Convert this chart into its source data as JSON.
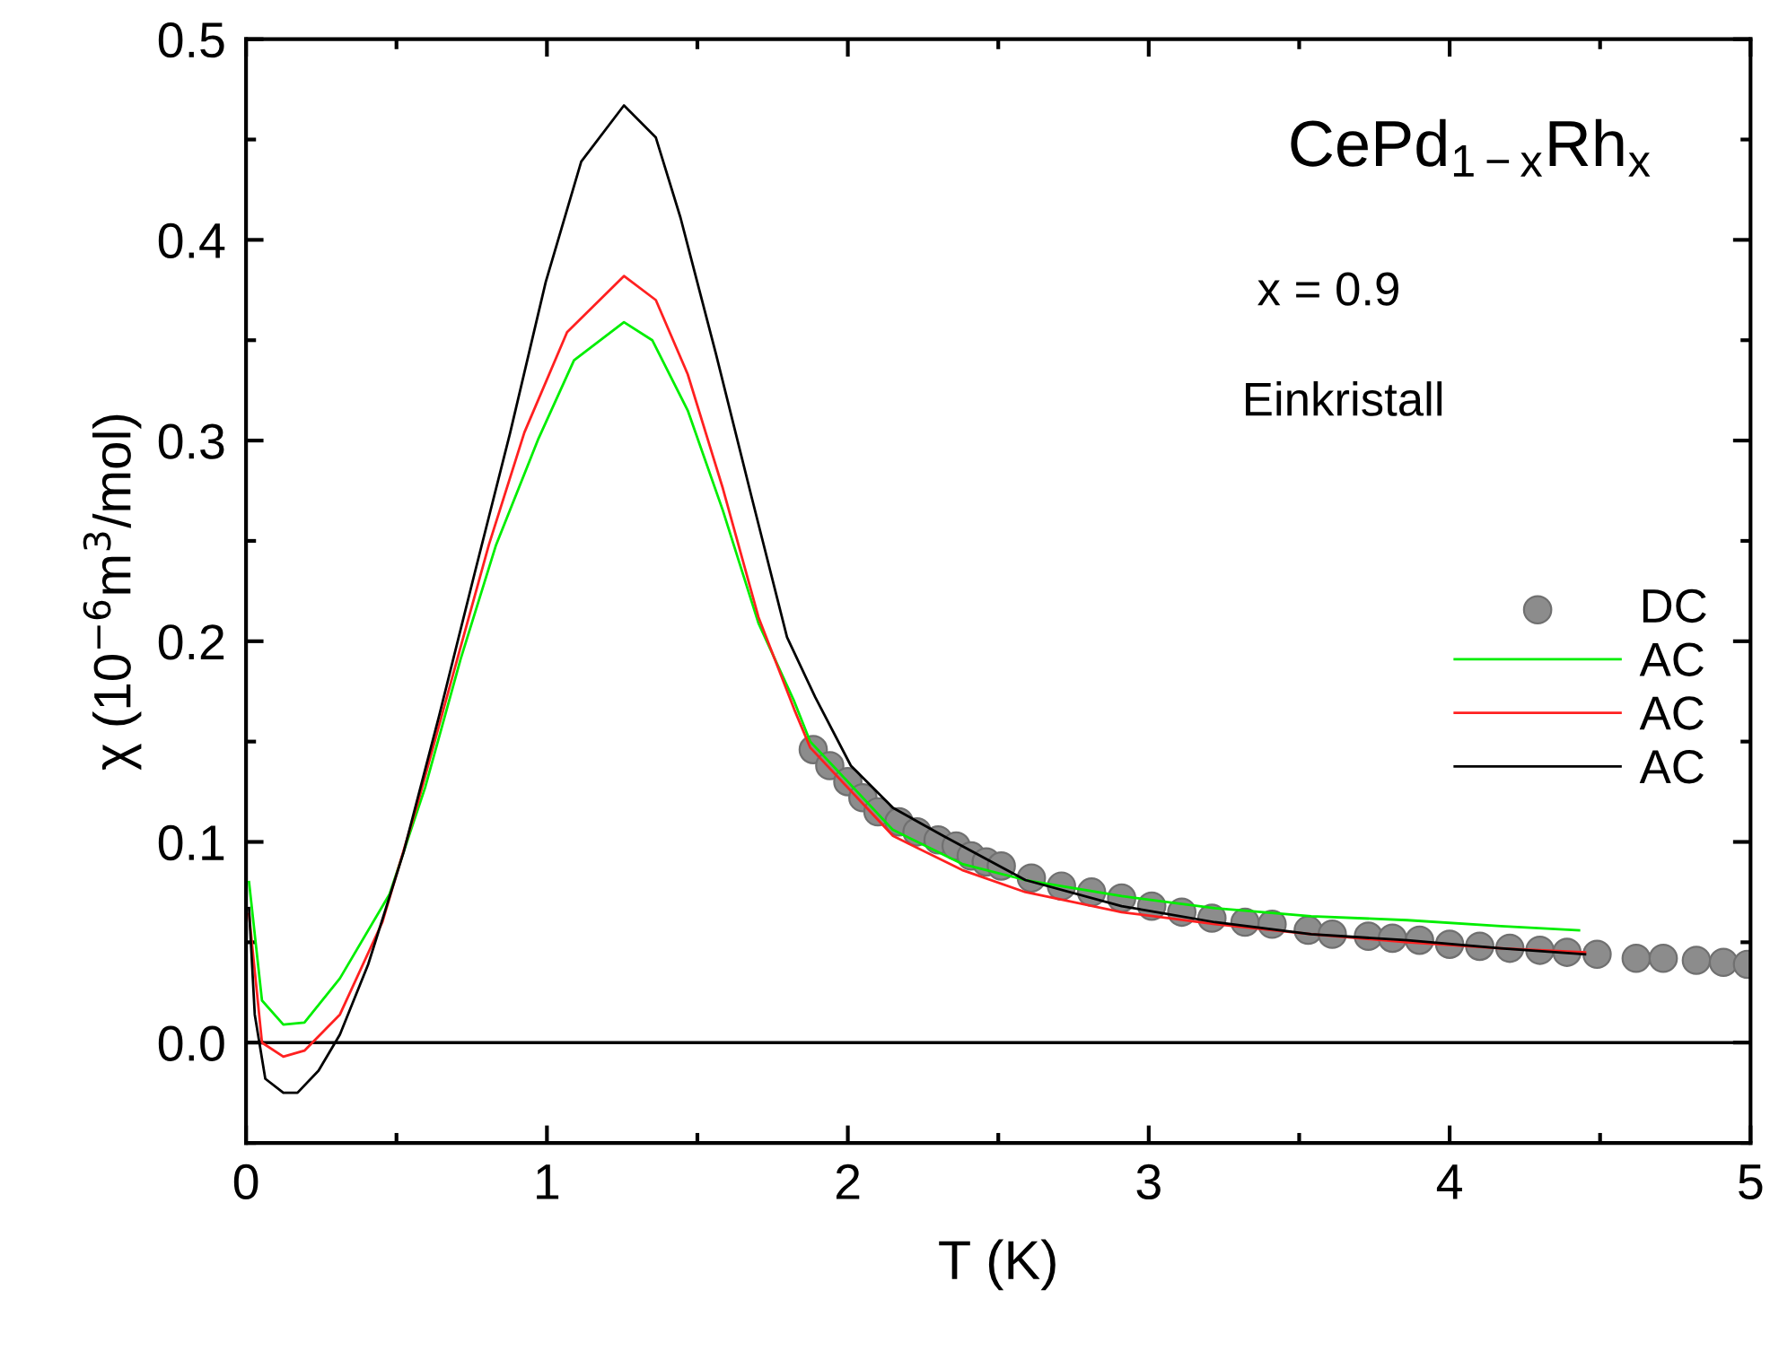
{
  "chart_data": {
    "type": "line",
    "xlabel": "T (K)",
    "ylabel": "χ (10$^{−6}$m$^{3}$/mol)",
    "xlim": [
      0,
      5
    ],
    "ylim": [
      -0.05,
      0.5
    ],
    "xticks": [
      0,
      {
        "value": 0.5,
        "label": null
      },
      1,
      {
        "value": 1.5,
        "label": null
      },
      2,
      {
        "value": 2.5,
        "label": null
      },
      3,
      {
        "value": 3.5,
        "label": null
      },
      4,
      {
        "value": 4.5,
        "label": null
      },
      5
    ],
    "yticks": [
      {
        "value": -0.05,
        "label": null
      },
      {
        "value": 0.0,
        "label": "0.0"
      },
      {
        "value": 0.05,
        "label": null
      },
      {
        "value": 0.1,
        "label": "0.1"
      },
      {
        "value": 0.15,
        "label": null
      },
      {
        "value": 0.2,
        "label": "0.2"
      },
      {
        "value": 0.25,
        "label": null
      },
      {
        "value": 0.3,
        "label": "0.3"
      },
      {
        "value": 0.35,
        "label": null
      },
      {
        "value": 0.4,
        "label": "0.4"
      },
      {
        "value": 0.45,
        "label": null
      },
      {
        "value": 0.5,
        "label": "0.5"
      }
    ],
    "grid": false,
    "legend": "right",
    "ref_lines": [
      {
        "axis": "y",
        "value": 0.0,
        "color": "#000000"
      }
    ],
    "annotations": [
      "CePd$_{1−x}$Rh$_{x}$",
      "x = 0.9",
      "Einkristall"
    ],
    "series": [
      {
        "name": "DC",
        "type": "scatter",
        "marker": "circle",
        "color": "#8c8c8c",
        "x": [
          1.885,
          1.94,
          2.0,
          2.05,
          2.1,
          2.17,
          2.23,
          2.3,
          2.36,
          2.41,
          2.46,
          2.51,
          2.61,
          2.71,
          2.81,
          2.91,
          3.01,
          3.11,
          3.21,
          3.32,
          3.41,
          3.53,
          3.61,
          3.73,
          3.81,
          3.9,
          4.0,
          4.1,
          4.2,
          4.3,
          4.39,
          4.49,
          4.62,
          4.71,
          4.82,
          4.91,
          4.99
        ],
        "values": [
          0.146,
          0.138,
          0.13,
          0.122,
          0.115,
          0.11,
          0.105,
          0.101,
          0.098,
          0.093,
          0.09,
          0.088,
          0.082,
          0.078,
          0.075,
          0.072,
          0.068,
          0.065,
          0.062,
          0.06,
          0.059,
          0.056,
          0.054,
          0.053,
          0.052,
          0.051,
          0.049,
          0.048,
          0.047,
          0.046,
          0.045,
          0.044,
          0.042,
          0.042,
          0.041,
          0.04,
          0.039
        ]
      },
      {
        "name": "AC",
        "color": "#00ee00",
        "x": [
          0.01,
          0.053,
          0.124,
          0.194,
          0.312,
          0.477,
          0.595,
          0.713,
          0.831,
          0.972,
          1.09,
          1.256,
          1.35,
          1.468,
          1.585,
          1.703,
          1.822,
          1.875,
          2.15,
          2.38,
          2.59,
          2.91,
          3.22,
          3.54,
          3.86,
          4.17,
          4.43
        ],
        "values": [
          0.08,
          0.021,
          0.009,
          0.01,
          0.032,
          0.074,
          0.127,
          0.191,
          0.248,
          0.301,
          0.34,
          0.359,
          0.35,
          0.315,
          0.265,
          0.209,
          0.17,
          0.15,
          0.106,
          0.089,
          0.081,
          0.073,
          0.067,
          0.063,
          0.061,
          0.058,
          0.056
        ]
      },
      {
        "name": "AC",
        "color": "#ff2020",
        "x": [
          0.01,
          0.053,
          0.124,
          0.194,
          0.312,
          0.453,
          0.572,
          0.689,
          0.807,
          0.925,
          1.067,
          1.256,
          1.362,
          1.468,
          1.585,
          1.703,
          1.822,
          1.875,
          2.15,
          2.38,
          2.59,
          2.91,
          3.22,
          3.54,
          3.86,
          4.17,
          4.45
        ],
        "values": [
          0.064,
          0.0,
          -0.007,
          -0.004,
          0.014,
          0.06,
          0.12,
          0.184,
          0.248,
          0.304,
          0.354,
          0.382,
          0.37,
          0.333,
          0.276,
          0.212,
          0.166,
          0.147,
          0.103,
          0.086,
          0.075,
          0.065,
          0.059,
          0.054,
          0.05,
          0.047,
          0.045
        ]
      },
      {
        "name": "AC",
        "color": "#000000",
        "x": [
          0.01,
          0.029,
          0.064,
          0.124,
          0.171,
          0.241,
          0.312,
          0.406,
          0.524,
          0.642,
          0.76,
          0.878,
          0.996,
          1.114,
          1.256,
          1.362,
          1.444,
          1.562,
          1.68,
          1.798,
          1.892,
          2.01,
          2.15,
          2.317,
          2.59,
          2.91,
          3.22,
          3.54,
          3.86,
          4.17,
          4.45
        ],
        "values": [
          0.067,
          0.014,
          -0.018,
          -0.025,
          -0.025,
          -0.014,
          0.004,
          0.039,
          0.095,
          0.163,
          0.234,
          0.304,
          0.379,
          0.439,
          0.467,
          0.451,
          0.411,
          0.343,
          0.272,
          0.202,
          0.172,
          0.138,
          0.117,
          0.103,
          0.081,
          0.068,
          0.06,
          0.054,
          0.051,
          0.047,
          0.044
        ]
      }
    ]
  }
}
